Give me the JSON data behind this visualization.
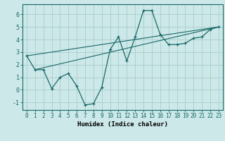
{
  "xlabel": "Humidex (Indice chaleur)",
  "ylabel": "",
  "background_color": "#cce8e8",
  "grid_color": "#aacccc",
  "line_color": "#1a6868",
  "xlim": [
    -0.5,
    23.5
  ],
  "ylim": [
    -1.6,
    6.8
  ],
  "xticks": [
    0,
    1,
    2,
    3,
    4,
    5,
    6,
    7,
    8,
    9,
    10,
    11,
    12,
    13,
    14,
    15,
    16,
    17,
    18,
    19,
    20,
    21,
    22,
    23
  ],
  "yticks": [
    -1,
    0,
    1,
    2,
    3,
    4,
    5,
    6
  ],
  "main_x": [
    0,
    1,
    2,
    3,
    4,
    5,
    6,
    7,
    8,
    9,
    10,
    11,
    12,
    13,
    14,
    15,
    16,
    17,
    18,
    19,
    20,
    21,
    22,
    23
  ],
  "main_y": [
    2.7,
    1.6,
    1.6,
    0.1,
    1.0,
    1.3,
    0.3,
    -1.2,
    -1.1,
    0.2,
    3.2,
    4.2,
    2.3,
    4.2,
    6.3,
    6.3,
    4.4,
    3.6,
    3.6,
    3.7,
    4.1,
    4.2,
    4.8,
    5.0
  ],
  "line1_x": [
    0,
    23
  ],
  "line1_y": [
    2.7,
    5.0
  ],
  "line2_x": [
    1,
    23
  ],
  "line2_y": [
    1.6,
    5.0
  ],
  "xlabel_fontsize": 6.5,
  "tick_fontsize": 5.5,
  "ytick_fontsize": 6.0
}
